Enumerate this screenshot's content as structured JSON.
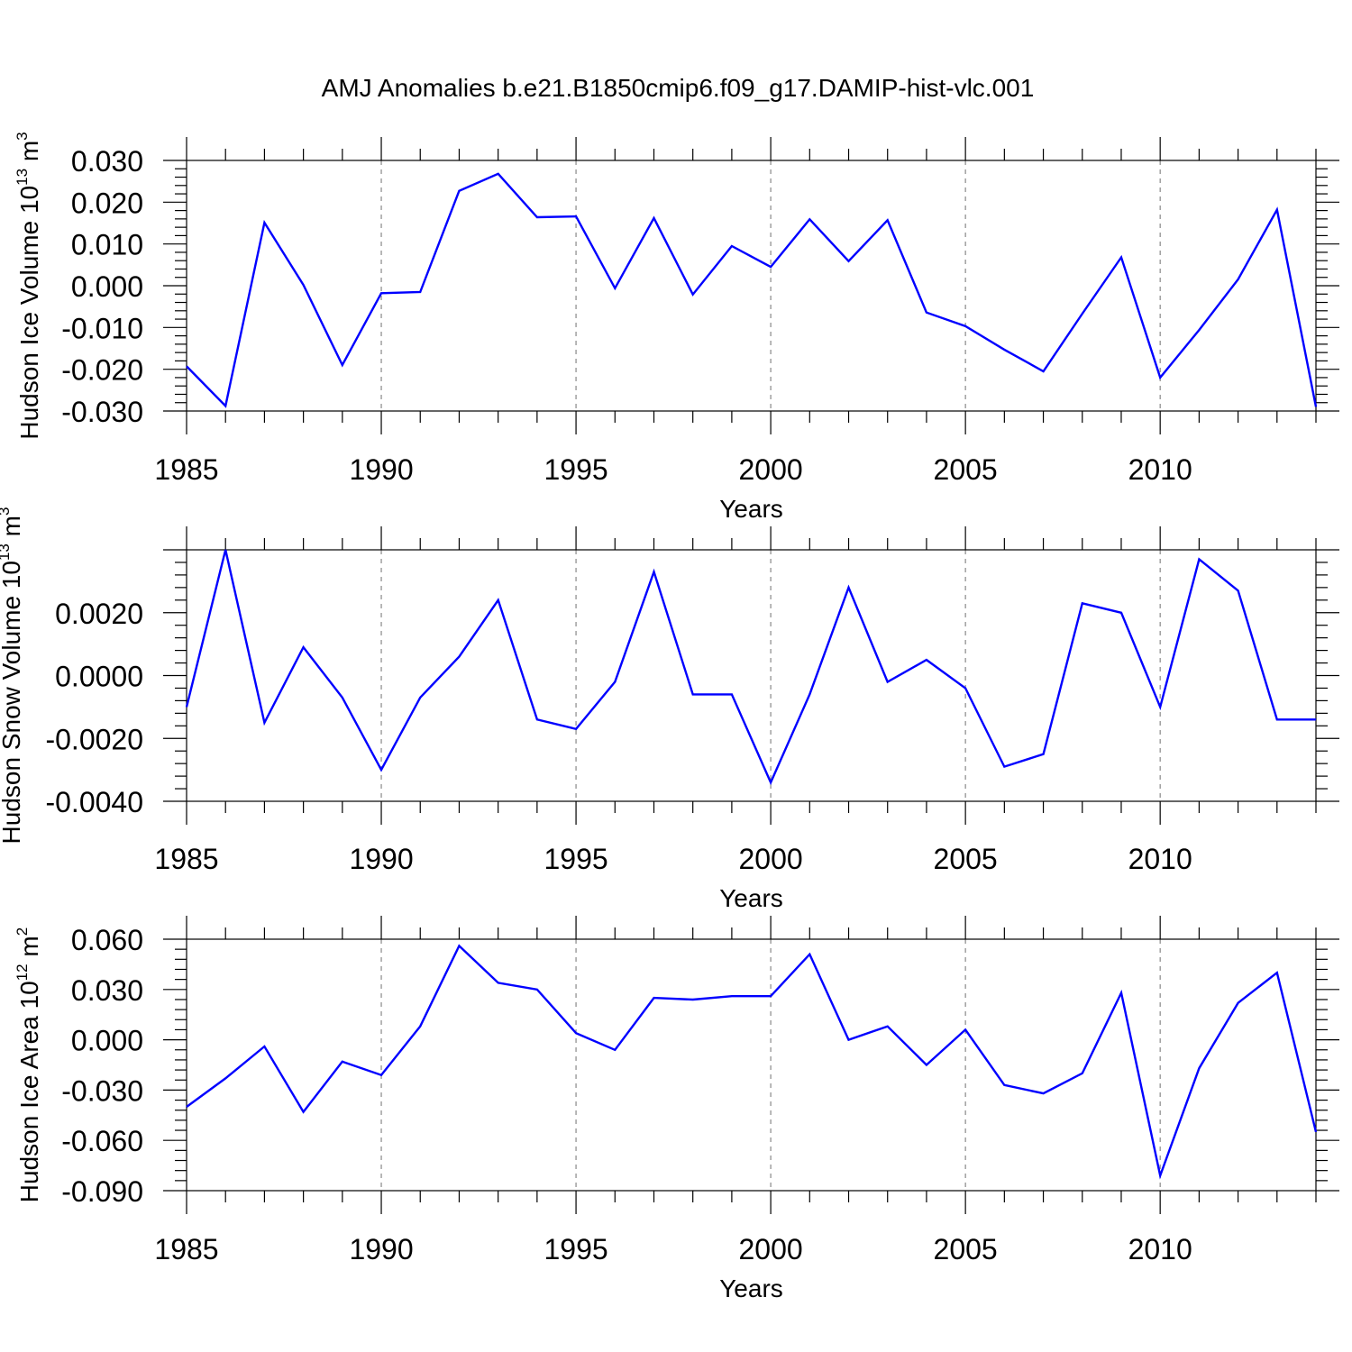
{
  "chart_data": {
    "title": "AMJ Anomalies b.e21.B1850cmip6.f09_g17.DAMIP-hist-vlc.001",
    "colors": {
      "line": "#0000ff",
      "axis": "#000000",
      "grid": "#888888"
    },
    "panels": [
      {
        "type": "line",
        "ylabel": "Hudson Ice Volume 10",
        "ylabel_exponent": "13",
        "ylabel_unit": "m",
        "ylabel_unit_exponent": "3",
        "xlabel": "Years",
        "xlim": [
          1985,
          2014
        ],
        "ylim": [
          -0.03,
          0.03
        ],
        "xticks": [
          1985,
          1990,
          1995,
          2000,
          2005,
          2010
        ],
        "xtick_labels": [
          "1985",
          "1990",
          "1995",
          "2000",
          "2005",
          "2010"
        ],
        "yticks": [
          0.03,
          0.02,
          0.01,
          0.0,
          -0.01,
          -0.02,
          -0.03
        ],
        "ytick_labels": [
          "0.030",
          "0.020",
          "0.010",
          "0.000",
          "-0.010",
          "-0.020",
          "-0.030"
        ],
        "x": [
          1985,
          1986,
          1987,
          1988,
          1989,
          1990,
          1991,
          1992,
          1993,
          1994,
          1995,
          1996,
          1997,
          1998,
          1999,
          2000,
          2001,
          2002,
          2003,
          2004,
          2005,
          2006,
          2007,
          2008,
          2009,
          2010,
          2011,
          2012,
          2013,
          2014
        ],
        "values": [
          -0.0193,
          -0.0288,
          0.0151,
          0.0002,
          -0.019,
          -0.0018,
          -0.0015,
          0.0227,
          0.0268,
          0.0164,
          0.0166,
          -0.0006,
          0.0162,
          -0.0021,
          0.0095,
          0.0045,
          0.0159,
          0.0059,
          0.0157,
          -0.0064,
          -0.0097,
          -0.0153,
          -0.0205,
          -0.0067,
          0.0068,
          -0.022,
          -0.0106,
          0.0015,
          0.0182,
          -0.029
        ]
      },
      {
        "type": "line",
        "ylabel": "Hudson Snow Volume 10",
        "ylabel_exponent": "13",
        "ylabel_unit": "m",
        "ylabel_unit_exponent": "3",
        "xlabel": "Years",
        "xlim": [
          1985,
          2014
        ],
        "ylim": [
          -0.004,
          0.004
        ],
        "xticks": [
          1985,
          1990,
          1995,
          2000,
          2005,
          2010
        ],
        "xtick_labels": [
          "1985",
          "1990",
          "1995",
          "2000",
          "2005",
          "2010"
        ],
        "yticks": [
          0.002,
          0.0,
          -0.002,
          -0.004
        ],
        "ytick_labels": [
          "0.0020",
          "0.0000",
          "-0.0020",
          "-0.0040"
        ],
        "x": [
          1985,
          1986,
          1987,
          1988,
          1989,
          1990,
          1991,
          1992,
          1993,
          1994,
          1995,
          1996,
          1997,
          1998,
          1999,
          2000,
          2001,
          2002,
          2003,
          2004,
          2005,
          2006,
          2007,
          2008,
          2009,
          2010,
          2011,
          2012,
          2013,
          2014
        ],
        "values": [
          -0.001,
          0.004,
          -0.0015,
          0.0009,
          -0.0007,
          -0.003,
          -0.0007,
          0.0006,
          0.0024,
          -0.0014,
          -0.0017,
          -0.0002,
          0.0033,
          -0.0006,
          -0.0006,
          -0.0034,
          -0.0006,
          0.0028,
          -0.0002,
          0.0005,
          -0.0004,
          -0.0029,
          -0.0025,
          0.0023,
          0.002,
          -0.001,
          0.0037,
          0.0027,
          -0.0014,
          -0.0014
        ]
      },
      {
        "type": "line",
        "ylabel": "Hudson Ice Area 10",
        "ylabel_exponent": "12",
        "ylabel_unit": "m",
        "ylabel_unit_exponent": "2",
        "xlabel": "Years",
        "xlim": [
          1985,
          2014
        ],
        "ylim": [
          -0.09,
          0.06
        ],
        "xticks": [
          1985,
          1990,
          1995,
          2000,
          2005,
          2010
        ],
        "xtick_labels": [
          "1985",
          "1990",
          "1995",
          "2000",
          "2005",
          "2010"
        ],
        "yticks": [
          0.06,
          0.03,
          0.0,
          -0.03,
          -0.06,
          -0.09
        ],
        "ytick_labels": [
          "0.060",
          "0.030",
          "0.000",
          "-0.030",
          "-0.060",
          "-0.090"
        ],
        "x": [
          1985,
          1986,
          1987,
          1988,
          1989,
          1990,
          1991,
          1992,
          1993,
          1994,
          1995,
          1996,
          1997,
          1998,
          1999,
          2000,
          2001,
          2002,
          2003,
          2004,
          2005,
          2006,
          2007,
          2008,
          2009,
          2010,
          2011,
          2012,
          2013,
          2014
        ],
        "values": [
          -0.04,
          -0.023,
          -0.004,
          -0.043,
          -0.013,
          -0.021,
          0.008,
          0.056,
          0.034,
          0.03,
          0.004,
          -0.006,
          0.025,
          0.024,
          0.026,
          0.026,
          0.051,
          0.0,
          0.008,
          -0.015,
          0.006,
          -0.027,
          -0.032,
          -0.02,
          0.028,
          -0.081,
          -0.017,
          0.022,
          0.04,
          -0.055
        ]
      }
    ]
  }
}
